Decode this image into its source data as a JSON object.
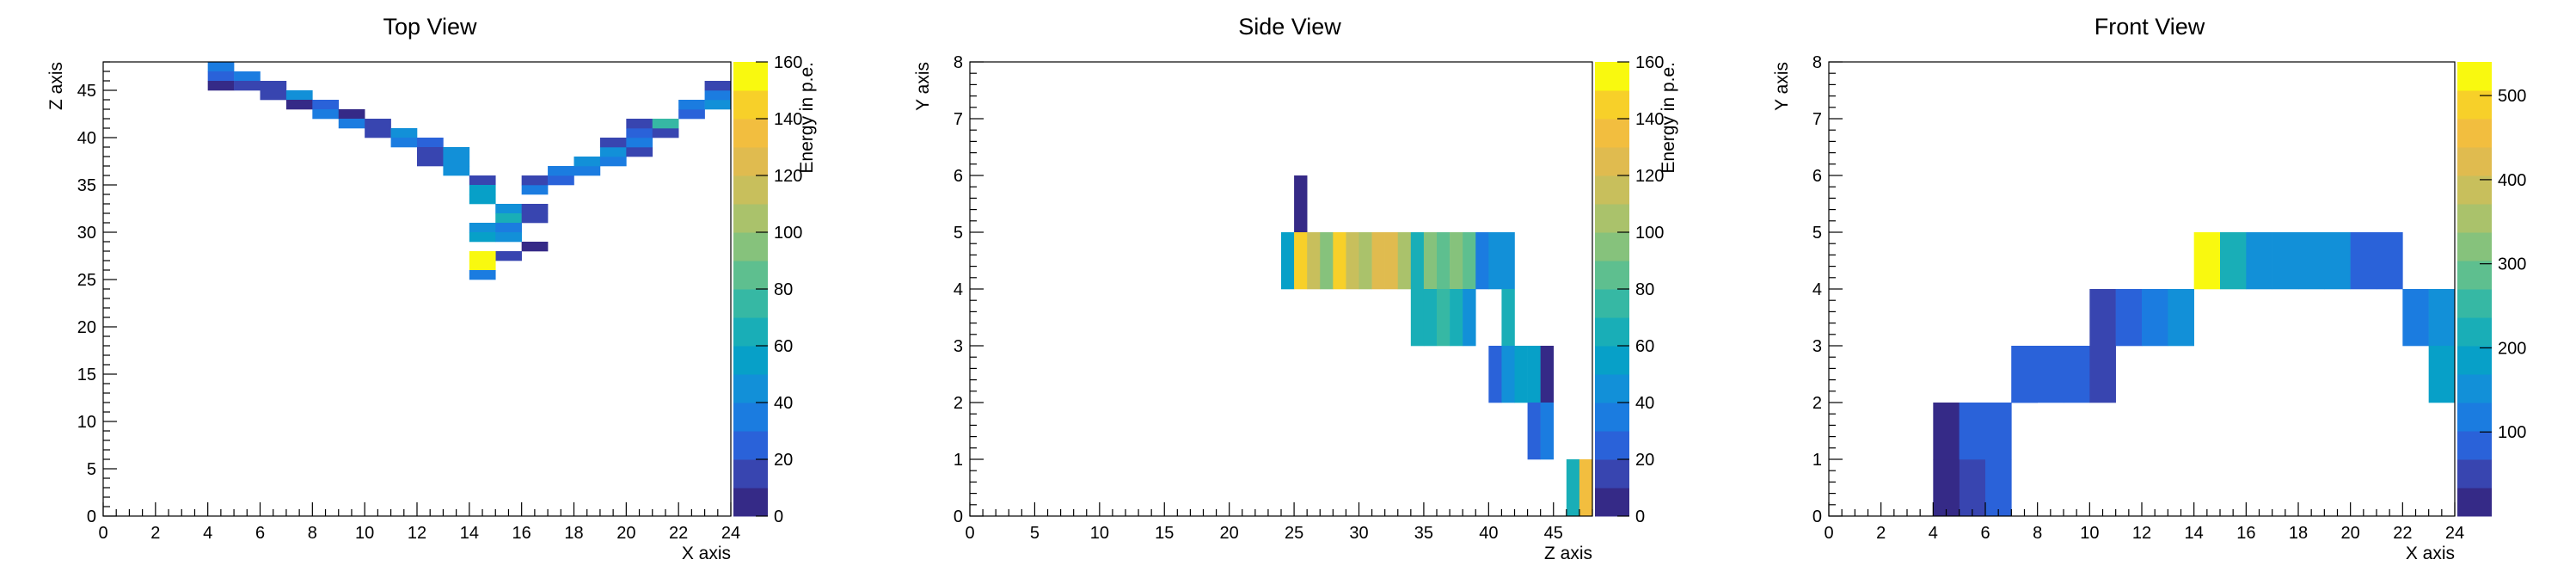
{
  "colors": {
    "palette": [
      "#352a87",
      "#3845b0",
      "#2a62d9",
      "#1b7ce0",
      "#1290d8",
      "#07a0c8",
      "#19aeb7",
      "#36b8a4",
      "#5ebf8f",
      "#86c27c",
      "#aac26b",
      "#c8bf5c",
      "#e0bb4f",
      "#f2be3f",
      "#f7d029",
      "#f9f90f"
    ]
  },
  "chart_data": [
    {
      "type": "heatmap",
      "title": "Top View",
      "xlabel": "X axis",
      "ylabel": "Z axis",
      "zlabel": "Energy in p.e.",
      "xlim": [
        0,
        24
      ],
      "ylim": [
        0,
        48
      ],
      "zlim": [
        0,
        160
      ],
      "x_ticks": [
        "0",
        "2",
        "4",
        "6",
        "8",
        "10",
        "12",
        "14",
        "16",
        "18",
        "20",
        "22",
        "24"
      ],
      "y_ticks": [
        "0",
        "5",
        "10",
        "15",
        "20",
        "25",
        "30",
        "35",
        "40",
        "45"
      ],
      "z_ticks": [
        "0",
        "20",
        "40",
        "60",
        "80",
        "100",
        "120",
        "140",
        "160"
      ],
      "cells": [
        [
          4,
          47,
          30
        ],
        [
          4,
          46,
          20
        ],
        [
          5,
          46,
          35
        ],
        [
          4,
          45,
          8
        ],
        [
          5,
          45,
          10
        ],
        [
          6,
          45,
          15
        ],
        [
          6,
          44,
          12
        ],
        [
          7,
          44,
          40
        ],
        [
          7,
          43,
          6
        ],
        [
          8,
          43,
          25
        ],
        [
          8,
          42,
          30
        ],
        [
          9,
          42,
          8
        ],
        [
          9,
          41,
          30
        ],
        [
          10,
          41,
          15
        ],
        [
          10,
          40,
          10
        ],
        [
          11,
          40,
          40
        ],
        [
          11,
          39,
          35
        ],
        [
          12,
          39,
          25
        ],
        [
          12,
          38,
          15
        ],
        [
          13,
          38,
          40
        ],
        [
          12,
          37,
          12
        ],
        [
          13,
          37,
          45
        ],
        [
          13,
          36,
          40
        ],
        [
          14,
          35,
          10
        ],
        [
          14,
          34,
          50
        ],
        [
          14,
          33,
          55
        ],
        [
          15,
          32,
          45
        ],
        [
          15,
          31,
          60
        ],
        [
          14,
          30,
          40
        ],
        [
          15,
          30,
          35
        ],
        [
          14,
          29,
          50
        ],
        [
          15,
          29,
          40
        ],
        [
          16,
          32,
          15
        ],
        [
          16,
          31,
          18
        ],
        [
          16,
          28,
          6
        ],
        [
          15,
          27,
          15
        ],
        [
          14,
          27,
          160
        ],
        [
          14,
          26,
          160
        ],
        [
          14,
          25,
          35
        ],
        [
          16,
          34,
          30
        ],
        [
          16,
          35,
          12
        ],
        [
          17,
          35,
          25
        ],
        [
          17,
          36,
          35
        ],
        [
          18,
          36,
          35
        ],
        [
          18,
          37,
          40
        ],
        [
          19,
          37,
          35
        ],
        [
          19,
          38,
          45
        ],
        [
          20,
          38,
          12
        ],
        [
          19,
          39,
          15
        ],
        [
          20,
          39,
          35
        ],
        [
          20,
          40,
          25
        ],
        [
          21,
          40,
          12
        ],
        [
          20,
          41,
          12
        ],
        [
          21,
          41,
          70
        ],
        [
          22,
          42,
          25
        ],
        [
          22,
          43,
          30
        ],
        [
          23,
          43,
          45
        ],
        [
          23,
          44,
          35
        ],
        [
          23,
          45,
          10
        ]
      ]
    },
    {
      "type": "heatmap",
      "title": "Side View",
      "xlabel": "Z axis",
      "ylabel": "Y axis",
      "zlabel": "Energy in p.e.",
      "xlim": [
        0,
        48
      ],
      "ylim": [
        0,
        8
      ],
      "zlim": [
        0,
        160
      ],
      "x_ticks": [
        "0",
        "5",
        "10",
        "15",
        "20",
        "25",
        "30",
        "35",
        "40",
        "45"
      ],
      "y_ticks": [
        "0",
        "1",
        "2",
        "3",
        "4",
        "5",
        "6",
        "7",
        "8"
      ],
      "z_ticks": [
        "0",
        "20",
        "40",
        "60",
        "80",
        "100",
        "120",
        "140",
        "160"
      ],
      "cells": [
        [
          25,
          5,
          8
        ],
        [
          24,
          4,
          50
        ],
        [
          25,
          4,
          145
        ],
        [
          26,
          4,
          110
        ],
        [
          27,
          4,
          95
        ],
        [
          28,
          4,
          140
        ],
        [
          29,
          4,
          110
        ],
        [
          30,
          4,
          100
        ],
        [
          31,
          4,
          120
        ],
        [
          32,
          4,
          120
        ],
        [
          33,
          4,
          100
        ],
        [
          34,
          4,
          65
        ],
        [
          35,
          4,
          95
        ],
        [
          36,
          4,
          80
        ],
        [
          37,
          4,
          90
        ],
        [
          38,
          4,
          80
        ],
        [
          39,
          4,
          30
        ],
        [
          40,
          4,
          40
        ],
        [
          41,
          4,
          45
        ],
        [
          34,
          3,
          60
        ],
        [
          35,
          3,
          60
        ],
        [
          36,
          3,
          75
        ],
        [
          37,
          3,
          65
        ],
        [
          38,
          3,
          40
        ],
        [
          41,
          3,
          60
        ],
        [
          40,
          2,
          20
        ],
        [
          41,
          2,
          45
        ],
        [
          42,
          2,
          55
        ],
        [
          43,
          2,
          55
        ],
        [
          44,
          2,
          8
        ],
        [
          43,
          1,
          25
        ],
        [
          44,
          1,
          35
        ],
        [
          46,
          0,
          60
        ],
        [
          47,
          0,
          130
        ]
      ]
    },
    {
      "type": "heatmap",
      "title": "Front View",
      "xlabel": "X axis",
      "ylabel": "Y axis",
      "zlabel": "",
      "xlim": [
        0,
        24
      ],
      "ylim": [
        0,
        8
      ],
      "zlim": [
        0,
        540
      ],
      "x_ticks": [
        "0",
        "2",
        "4",
        "6",
        "8",
        "10",
        "12",
        "14",
        "16",
        "18",
        "20",
        "22",
        "24"
      ],
      "y_ticks": [
        "0",
        "1",
        "2",
        "3",
        "4",
        "5",
        "6",
        "7",
        "8"
      ],
      "z_ticks": [
        "100",
        "200",
        "300",
        "400",
        "500"
      ],
      "cells": [
        [
          14,
          4,
          540
        ],
        [
          15,
          4,
          220
        ],
        [
          16,
          4,
          160
        ],
        [
          17,
          4,
          150
        ],
        [
          18,
          4,
          140
        ],
        [
          19,
          4,
          140
        ],
        [
          20,
          4,
          100
        ],
        [
          21,
          4,
          100
        ],
        [
          10,
          3,
          40
        ],
        [
          11,
          3,
          100
        ],
        [
          12,
          3,
          130
        ],
        [
          13,
          3,
          150
        ],
        [
          22,
          3,
          120
        ],
        [
          23,
          3,
          150
        ],
        [
          7,
          2,
          100
        ],
        [
          8,
          2,
          100
        ],
        [
          9,
          2,
          100
        ],
        [
          10,
          2,
          40
        ],
        [
          23,
          2,
          170
        ],
        [
          5,
          1,
          90
        ],
        [
          6,
          1,
          90
        ],
        [
          5,
          0,
          40
        ],
        [
          4,
          0,
          30
        ],
        [
          4,
          1,
          30
        ],
        [
          6,
          0,
          100
        ],
        [
          5,
          1,
          90
        ],
        [
          7,
          2,
          90
        ]
      ]
    }
  ]
}
